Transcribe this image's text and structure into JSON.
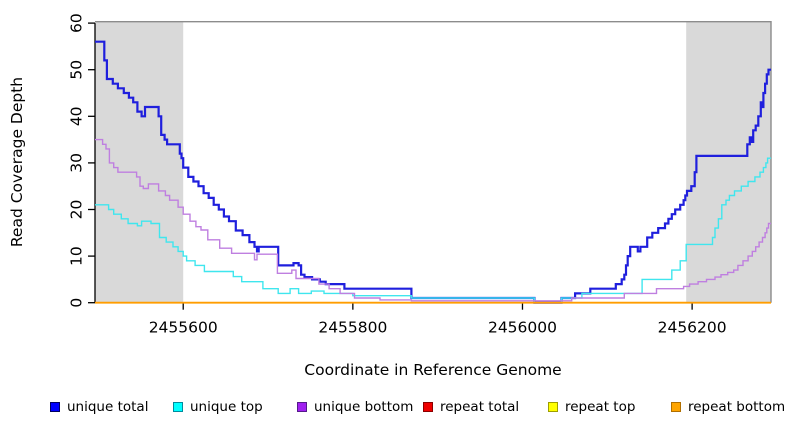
{
  "chart_data": {
    "type": "line",
    "subtype": "step-coverage-plot",
    "title": "",
    "xlabel": "Coordinate in Reference Genome",
    "ylabel": "Read Coverage Depth",
    "xlim": [
      2455496,
      2456293
    ],
    "ylim": [
      0,
      60.3
    ],
    "grid": false,
    "x_ticks": [
      2455600,
      2455800,
      2456000,
      2456200
    ],
    "y_ticks": [
      0,
      10,
      20,
      30,
      40,
      50,
      60
    ],
    "shaded_regions": [
      {
        "from": 2455496,
        "to": 2455600,
        "color": "#d9d9d9"
      },
      {
        "from": 2456193,
        "to": 2456293,
        "color": "#d9d9d9"
      }
    ],
    "box_color": "#8c8c8c",
    "axis_color": "#000000",
    "legend_position": "bottom",
    "series": [
      {
        "name": "unique total",
        "color": "#1f1fdd",
        "legend_fill": "#0000ff",
        "legend_border": "#000060",
        "width": 2.2,
        "points": [
          [
            2455496,
            56
          ],
          [
            2455507,
            52
          ],
          [
            2455510,
            48
          ],
          [
            2455517,
            47
          ],
          [
            2455523,
            46
          ],
          [
            2455530,
            45
          ],
          [
            2455536,
            44
          ],
          [
            2455541,
            43
          ],
          [
            2455546,
            41
          ],
          [
            2455551,
            40
          ],
          [
            2455555,
            42
          ],
          [
            2455571,
            40
          ],
          [
            2455574,
            36
          ],
          [
            2455578,
            35
          ],
          [
            2455581,
            34
          ],
          [
            2455596,
            32
          ],
          [
            2455598,
            31
          ],
          [
            2455600,
            29
          ],
          [
            2455606,
            27
          ],
          [
            2455612,
            26
          ],
          [
            2455618,
            25
          ],
          [
            2455624,
            23.5
          ],
          [
            2455630,
            22.5
          ],
          [
            2455636,
            21
          ],
          [
            2455642,
            20
          ],
          [
            2455648,
            18.5
          ],
          [
            2455654,
            17.5
          ],
          [
            2455662,
            15.5
          ],
          [
            2455670,
            14.5
          ],
          [
            2455678,
            13
          ],
          [
            2455684,
            12
          ],
          [
            2455687,
            11
          ],
          [
            2455689,
            12
          ],
          [
            2455712,
            8
          ],
          [
            2455730,
            8.5
          ],
          [
            2455736,
            8
          ],
          [
            2455739,
            6
          ],
          [
            2455743,
            5.5
          ],
          [
            2455752,
            5
          ],
          [
            2455761,
            4.5
          ],
          [
            2455768,
            4
          ],
          [
            2455790,
            3
          ],
          [
            2455869,
            1
          ],
          [
            2456014,
            0
          ],
          [
            2456046,
            1
          ],
          [
            2456062,
            2
          ],
          [
            2456080,
            3
          ],
          [
            2456110,
            4
          ],
          [
            2456117,
            5
          ],
          [
            2456120,
            6
          ],
          [
            2456122,
            8
          ],
          [
            2456124,
            10
          ],
          [
            2456127,
            12
          ],
          [
            2456136,
            11
          ],
          [
            2456139,
            12
          ],
          [
            2456147,
            14
          ],
          [
            2456153,
            15
          ],
          [
            2456160,
            16
          ],
          [
            2456168,
            17
          ],
          [
            2456172,
            18
          ],
          [
            2456176,
            19
          ],
          [
            2456180,
            20
          ],
          [
            2456186,
            21
          ],
          [
            2456190,
            22
          ],
          [
            2456192,
            23
          ],
          [
            2456194,
            24
          ],
          [
            2456199,
            25
          ],
          [
            2456203,
            28
          ],
          [
            2456205,
            31.5
          ],
          [
            2456265,
            34
          ],
          [
            2456268,
            35.5
          ],
          [
            2456270,
            34.5
          ],
          [
            2456272,
            37
          ],
          [
            2456275,
            38
          ],
          [
            2456278,
            40
          ],
          [
            2456281,
            43
          ],
          [
            2456283,
            42
          ],
          [
            2456284,
            45
          ],
          [
            2456286,
            47
          ],
          [
            2456288,
            49
          ],
          [
            2456290,
            50
          ]
        ]
      },
      {
        "name": "unique top",
        "color": "#3fe6ee",
        "legend_fill": "#00ffff",
        "legend_border": "#008b9e",
        "width": 1.4,
        "points": [
          [
            2455496,
            21
          ],
          [
            2455512,
            20
          ],
          [
            2455518,
            19
          ],
          [
            2455527,
            18
          ],
          [
            2455535,
            17
          ],
          [
            2455546,
            16.5
          ],
          [
            2455551,
            17.5
          ],
          [
            2455562,
            17
          ],
          [
            2455572,
            14
          ],
          [
            2455580,
            13
          ],
          [
            2455588,
            12
          ],
          [
            2455594,
            11
          ],
          [
            2455600,
            10
          ],
          [
            2455604,
            9
          ],
          [
            2455614,
            8
          ],
          [
            2455625,
            6.7
          ],
          [
            2455659,
            5.6
          ],
          [
            2455669,
            4.5
          ],
          [
            2455694,
            3
          ],
          [
            2455712,
            2
          ],
          [
            2455726,
            3
          ],
          [
            2455736,
            2
          ],
          [
            2455751,
            2.5
          ],
          [
            2455766,
            2
          ],
          [
            2455800,
            1.5
          ],
          [
            2455869,
            1
          ],
          [
            2456014,
            0
          ],
          [
            2456046,
            1
          ],
          [
            2456070,
            2
          ],
          [
            2456141,
            5
          ],
          [
            2456176,
            7
          ],
          [
            2456186,
            9
          ],
          [
            2456193,
            12.5
          ],
          [
            2456224,
            14
          ],
          [
            2456227,
            16
          ],
          [
            2456231,
            18
          ],
          [
            2456235,
            21
          ],
          [
            2456240,
            22
          ],
          [
            2456244,
            23
          ],
          [
            2456250,
            24
          ],
          [
            2456258,
            25
          ],
          [
            2456266,
            26
          ],
          [
            2456274,
            27
          ],
          [
            2456280,
            28
          ],
          [
            2456284,
            29
          ],
          [
            2456287,
            30
          ],
          [
            2456289,
            31
          ]
        ]
      },
      {
        "name": "unique bottom",
        "color": "#bf7fe0",
        "legend_fill": "#a020f0",
        "legend_border": "#551a8b",
        "width": 1.4,
        "points": [
          [
            2455496,
            35
          ],
          [
            2455505,
            34
          ],
          [
            2455509,
            33
          ],
          [
            2455513,
            30
          ],
          [
            2455518,
            29
          ],
          [
            2455523,
            28
          ],
          [
            2455545,
            27
          ],
          [
            2455549,
            25
          ],
          [
            2455553,
            24.5
          ],
          [
            2455559,
            25.5
          ],
          [
            2455571,
            24
          ],
          [
            2455579,
            23
          ],
          [
            2455584,
            22
          ],
          [
            2455594,
            20.5
          ],
          [
            2455600,
            19
          ],
          [
            2455608,
            17.5
          ],
          [
            2455615,
            16.3
          ],
          [
            2455621,
            15.6
          ],
          [
            2455629,
            13.5
          ],
          [
            2455643,
            11.7
          ],
          [
            2455657,
            10.6
          ],
          [
            2455684,
            9.2
          ],
          [
            2455687,
            10.4
          ],
          [
            2455711,
            6.3
          ],
          [
            2455728,
            7
          ],
          [
            2455733,
            5.2
          ],
          [
            2455760,
            4
          ],
          [
            2455772,
            3
          ],
          [
            2455785,
            2
          ],
          [
            2455802,
            1
          ],
          [
            2455832,
            0.6
          ],
          [
            2455869,
            0.4
          ],
          [
            2456058,
            1
          ],
          [
            2456120,
            2
          ],
          [
            2456158,
            3
          ],
          [
            2456190,
            3.5
          ],
          [
            2456197,
            4
          ],
          [
            2456207,
            4.5
          ],
          [
            2456217,
            5
          ],
          [
            2456227,
            5.5
          ],
          [
            2456234,
            6
          ],
          [
            2456242,
            6.5
          ],
          [
            2456249,
            7
          ],
          [
            2456254,
            8
          ],
          [
            2456260,
            9
          ],
          [
            2456266,
            10
          ],
          [
            2456271,
            11
          ],
          [
            2456275,
            12
          ],
          [
            2456279,
            13
          ],
          [
            2456283,
            14
          ],
          [
            2456286,
            15
          ],
          [
            2456288,
            16
          ],
          [
            2456290,
            17
          ]
        ]
      },
      {
        "name": "repeat total",
        "color": "#dd2222",
        "legend_fill": "#ee0000",
        "legend_border": "#8b0000",
        "width": 1.4,
        "points": [
          [
            2455496,
            0
          ]
        ]
      },
      {
        "name": "repeat top",
        "color": "#ffff00",
        "legend_fill": "#ffff00",
        "legend_border": "#9e9e00",
        "width": 1.4,
        "points": [
          [
            2455496,
            0
          ]
        ]
      },
      {
        "name": "repeat bottom",
        "color": "#ff9d00",
        "legend_fill": "#ffa500",
        "legend_border": "#b06f00",
        "width": 1.8,
        "points": [
          [
            2455496,
            0
          ]
        ]
      }
    ]
  }
}
